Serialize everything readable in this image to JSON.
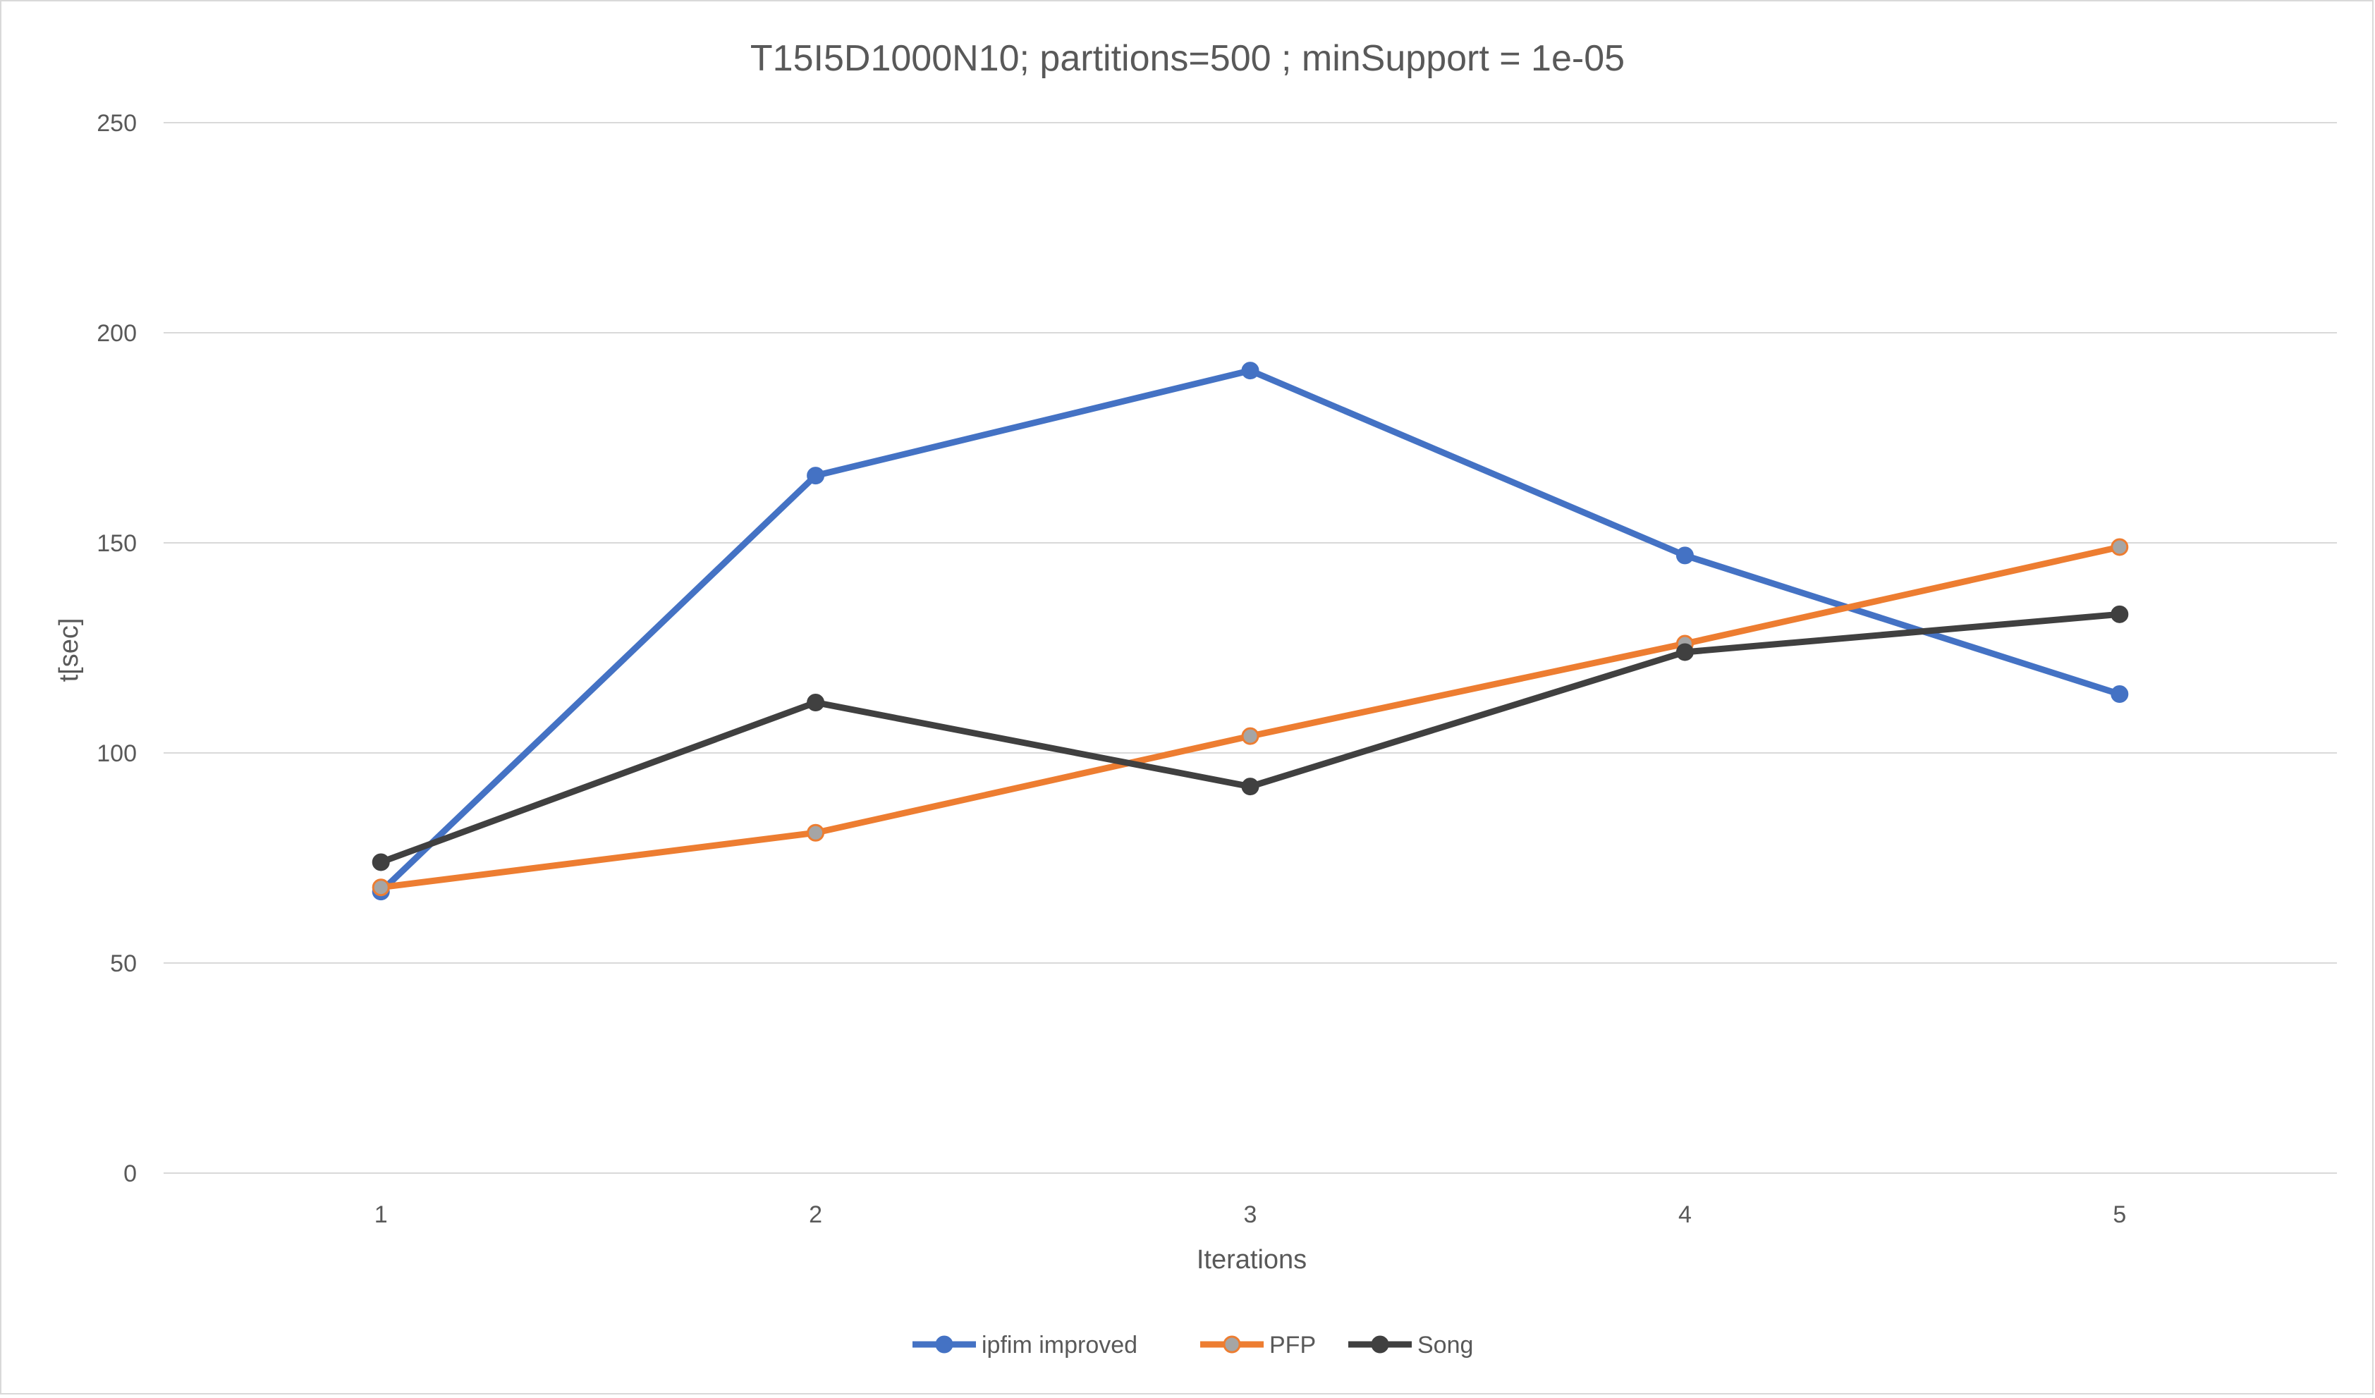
{
  "chart_data": {
    "type": "line",
    "title": "T15I5D1000N10; partitions=500 ; minSupport = 1e-05",
    "xlabel": "Iterations",
    "ylabel": "t[sec]",
    "categories": [
      "1",
      "2",
      "3",
      "4",
      "5"
    ],
    "ylim": [
      0,
      250
    ],
    "yticks": [
      "0",
      "50",
      "100",
      "150",
      "200",
      "250"
    ],
    "grid": "horizontal",
    "legend_position": "bottom",
    "series": [
      {
        "name": "ipfim improved",
        "color": "#4472C4",
        "marker_color": "#4472C4",
        "values": [
          67,
          166,
          191,
          147,
          114
        ]
      },
      {
        "name": "PFP",
        "color": "#ED7D31",
        "marker_color": "#A5A5A5",
        "values": [
          68,
          81,
          104,
          126,
          149
        ]
      },
      {
        "name": "Song",
        "color": "#404040",
        "marker_color": "#404040",
        "values": [
          74,
          112,
          92,
          124,
          133
        ]
      }
    ]
  }
}
